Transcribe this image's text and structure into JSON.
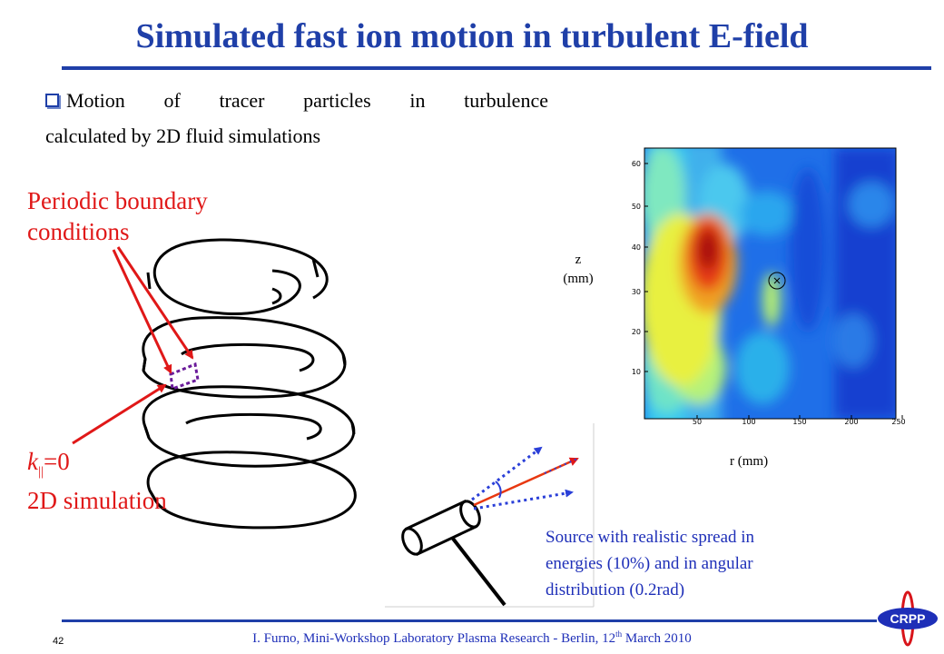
{
  "slide": {
    "title": "Simulated fast ion motion in turbulent E-field",
    "bullet": {
      "words": [
        "Motion",
        "of",
        "tracer",
        "particles",
        "in",
        "turbulence"
      ],
      "line2": "calculated by 2D fluid simulations"
    },
    "labels": {
      "periodic_line1": "Periodic boundary",
      "periodic_line2": "conditions",
      "k_letter": "k",
      "k_sub": "||",
      "k_rest": "=0",
      "sim_2d": "2D simulation"
    },
    "source_text": {
      "line1": "Source with realistic spread in",
      "line2": "energies (10%) and in angular",
      "line3": "distribution (0.2rad)"
    },
    "plot": {
      "z_label_line1": "z",
      "z_label_line2": "(mm)",
      "r_label": "r (mm)",
      "y_ticks": [
        "10",
        "20",
        "30",
        "40",
        "50",
        "60"
      ],
      "x_ticks": [
        "50",
        "100",
        "150",
        "200",
        "250"
      ]
    },
    "footer": {
      "text_before": "I. Furno, Mini-Workshop Laboratory Plasma Research -  Berlin, 12",
      "sup": "th",
      "text_after": " March 2010",
      "page_number": "42",
      "logo_text": "CRPP"
    },
    "colors": {
      "title_blue": "#1f3fa8",
      "label_red": "#e01818",
      "text_blue": "#1e2fb8"
    }
  }
}
